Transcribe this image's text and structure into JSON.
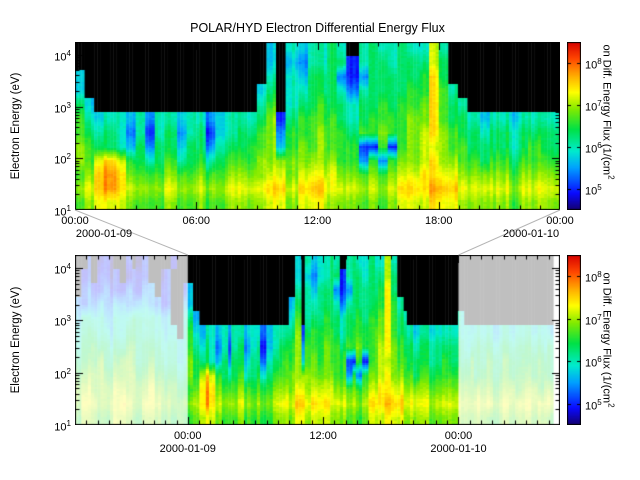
{
  "title": "POLAR/HYD  Electron Differential Energy Flux",
  "axes": {
    "y_label": "Electron Energy (eV)",
    "y_ticks": [
      "10^1",
      "10^2",
      "10^3",
      "10^4"
    ]
  },
  "value_encoding": {
    ".": null,
    " ": "white",
    "a": 4.7,
    "b": 5.0,
    "c": 5.4,
    "d": 5.7,
    "e": 6.0,
    "f": 6.3,
    "g": 6.6,
    "h": 6.9,
    "i": 7.2,
    "j": 7.5,
    "k": 7.8,
    "l": 8.1
  },
  "colors": {
    "background": "#ffffff",
    "axis": "#000000",
    "no_flux": "#000000",
    "connector": "#b4b4b4",
    "fade_overlay": "rgba(255,255,255,0.75)",
    "colormap_stops": [
      [
        0.0,
        "#14006e"
      ],
      [
        0.1,
        "#0a0aff"
      ],
      [
        0.25,
        "#00a0ff"
      ],
      [
        0.35,
        "#00ebcd"
      ],
      [
        0.48,
        "#00e146"
      ],
      [
        0.6,
        "#82eb00"
      ],
      [
        0.7,
        "#ffff00"
      ],
      [
        0.8,
        "#ffaa00"
      ],
      [
        0.9,
        "#ff4600"
      ],
      [
        1.0,
        "#d70000"
      ]
    ]
  },
  "chart_data": [
    {
      "type": "heatmap",
      "panel": "top",
      "title": "POLAR/HYD  Electron Differential Energy Flux",
      "x_start": "2000-01-09 00:00",
      "x_end": "2000-01-10 00:00",
      "x_ticks": [
        "00:00",
        "06:00",
        "12:00",
        "18:00",
        "00:00"
      ],
      "x_tick_hours": [
        0,
        6,
        12,
        18,
        24
      ],
      "x_date_labels": [
        "2000-01-09",
        "2000-01-10"
      ],
      "y_label": "Electron Energy (eV)",
      "y_scale": "log",
      "y_range_ev": [
        10,
        17800
      ],
      "y_ticks": [
        "10^1",
        "10^2",
        "10^3",
        "10^4"
      ],
      "time_bin_minutes": 30,
      "rows_order": "highest-energy-first",
      "units": "log10 of differential energy flux; '.' = below scale (black)",
      "colorbar": {
        "label": "on Diff. Energy Flux (1/(cm^2",
        "ticks": [
          "10^5",
          "10^6",
          "10^7",
          "10^8"
        ],
        "log10_range": [
          4.5,
          8.5
        ]
      },
      "rows": [
        "...................d.edeefe.efeefeeie...........",
        "...................d.dceeffbeffefffif...........",
        "d..................e.edfffcbcfffffgjf...........",
        "d.................df.eefffeceffffggjge..........",
        "fd................eg.effgffeffgfgghjgfe.........",
        "gedeedeceedeecdeeefhbfggggfefgggghhjgffedeedeeee",
        "gfefecebefcefbdeffghcggghggfgghgghijhgffeffeffff",
        "hgffedfcffdffceffgghdghghgggbbgbghiihggffffefgff",
        "hgijigfefgefgefggghhhhhhhhggcgcghhijhhggfggfgggg",
        "ghjkjhggghgghgghhhhiihiiiihhghghiijjiihhhhhghhhh",
        "hijkjihhhihhihhiiiijjijjjiiihihijjjkjjiiiiihiiii",
        "ghiiihggghgghgghhhhiihiiihhhghghiiijiihhhhhghhhh"
      ]
    },
    {
      "type": "heatmap",
      "panel": "bottom",
      "x_start": "2000-01-08 14:00",
      "x_end": "2000-01-10 09:00",
      "x_ticks": [
        "00:00",
        "12:00",
        "00:00"
      ],
      "x_tick_hours_from_start": [
        10,
        22,
        34
      ],
      "x_date_labels": [
        "2000-01-09",
        "2000-01-10"
      ],
      "highlight_hours_from_start": [
        10,
        34
      ],
      "y_label": "Electron Energy (eV)",
      "y_scale": "log",
      "y_range_ev": [
        10,
        17800
      ],
      "y_ticks": [
        "10^1",
        "10^2",
        "10^3",
        "10^4"
      ],
      "time_bin_minutes": 30,
      "center_rows": "identical to top panel rows (highlighted region between connector lines)",
      "colorbar": {
        "label": "on Diff. Energy Flux (1/(cm^2",
        "ticks": [
          "10^5",
          "10^6",
          "10^7",
          "10^8"
        ],
        "log10_range": [
          4.5,
          8.5
        ]
      },
      "left_context_rows": [
        "..b.aba..b.ab....a..",
        ".ab.bbab.abbb..ab...",
        ".bcbbcbbbcbbcc.bb..b",
        "cbccdccddccddccbb..d",
        "deeeeddeeeffeeedd..e",
        "eeffeedeefffeeeedd.e",
        "effgffeffggffffeeede",
        "ffgghffghhgffgffeede",
        "gghhhgghhhhgghggffef",
        "hhihhhhiihhhhihhggfg",
        "hiiihhiijihhiiihhggh",
        "ghhhgghiihgghhhggfgg"
      ],
      "right_context_rows": [
        "................. ",
        "................. ",
        "................. ",
        "................. ",
        "e................ ",
        "eedeeedeedeeedeed ",
        "feefffeffefffefef ",
        "ffgffgffgffgffgff ",
        "gggfggfggfgggfggf ",
        "hhghhhghhhghhhghh ",
        "iihiiihiihiiihiii ",
        "hhghhgghhghhhghhg "
      ]
    }
  ]
}
